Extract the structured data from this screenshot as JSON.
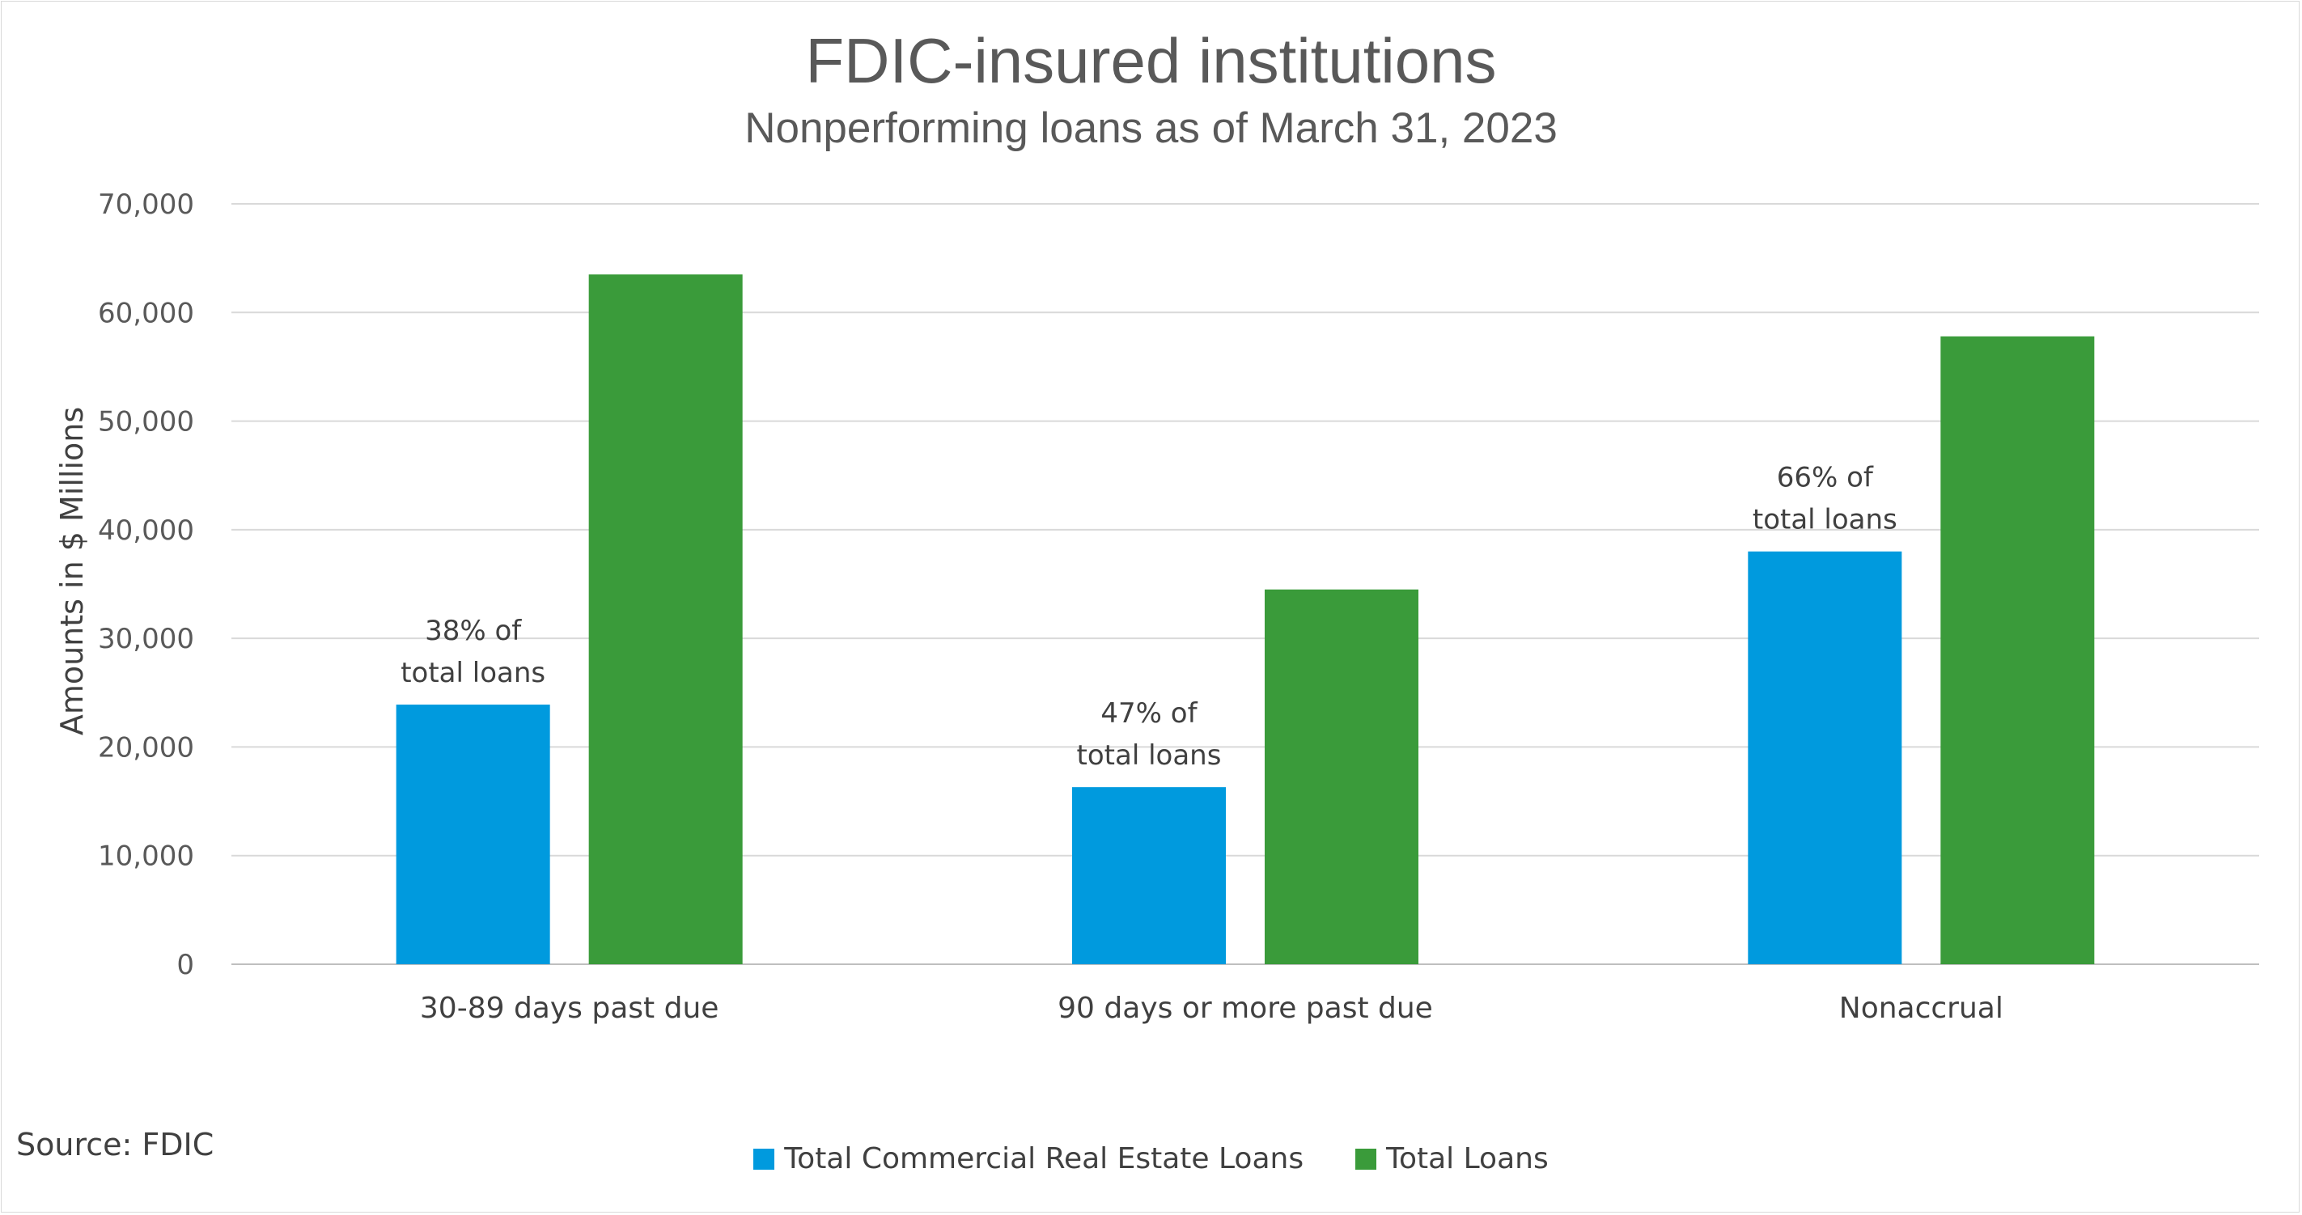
{
  "chart_data": {
    "type": "bar",
    "title": "FDIC-insured institutions",
    "subtitle": "Nonperforming loans as of March 31, 2023",
    "xlabel": "",
    "ylabel": "Amounts in $ Millions",
    "ylim": [
      0,
      70000
    ],
    "yticks": [
      0,
      10000,
      20000,
      30000,
      40000,
      50000,
      60000,
      70000
    ],
    "ytick_labels": [
      "0",
      "10,000",
      "20,000",
      "30,000",
      "40,000",
      "50,000",
      "60,000",
      "70,000"
    ],
    "categories": [
      "30-89 days past due",
      "90 days or more past due",
      "Nonaccrual"
    ],
    "series": [
      {
        "name": "Total Commercial Real Estate Loans",
        "color": "#009ADE",
        "values": [
          23900,
          16300,
          38000
        ]
      },
      {
        "name": "Total Loans",
        "color": "#3A9B3A",
        "values": [
          63500,
          34500,
          57800
        ]
      }
    ],
    "annotations": [
      {
        "category": "30-89 days past due",
        "lines": [
          "38% of",
          "total loans"
        ]
      },
      {
        "category": "90 days or more past due",
        "lines": [
          "47% of",
          "total loans"
        ]
      },
      {
        "category": "Nonaccrual",
        "lines": [
          "66% of",
          "total loans"
        ]
      }
    ],
    "grid": true,
    "legend": "bottom",
    "source": "Source: FDIC"
  }
}
